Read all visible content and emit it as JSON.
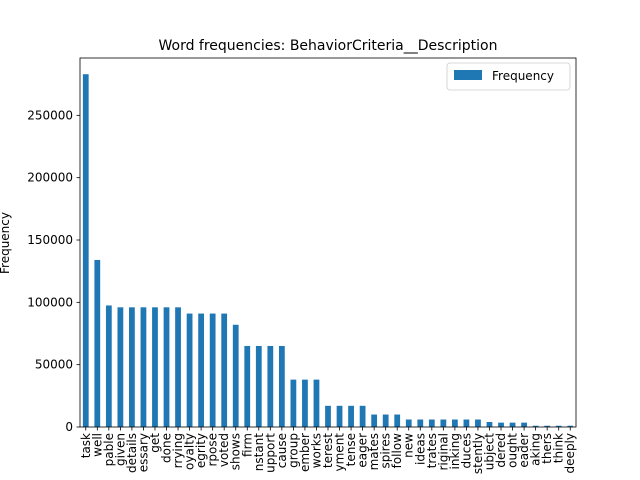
{
  "chart_data": {
    "type": "bar",
    "title": "Word frequencies: BehaviorCriteria__Description",
    "xlabel": "",
    "ylabel": "Frequency",
    "ylim": [
      0,
      296000
    ],
    "yticks": [
      0,
      50000,
      100000,
      150000,
      200000,
      250000
    ],
    "grid": false,
    "legend_position": "top-right",
    "bar_color": "#1f77b4",
    "categories": [
      "task",
      "well",
      "capable",
      "given",
      "details",
      "necessary",
      "get",
      "done",
      "carrying",
      "loyalty",
      "integrity",
      "purpose",
      "devoted",
      "shows",
      "firm",
      "constant",
      "support",
      "cause",
      "group",
      "member",
      "works",
      "interest",
      "payment",
      "intense",
      "eager",
      "mates",
      "inspires",
      "follow",
      "new",
      "ideas",
      "illustrates",
      "original",
      "thinking",
      "produces",
      "consistently",
      "subject",
      "considered",
      "thought",
      "leader",
      "making",
      "others",
      "think",
      "deeply"
    ],
    "tick_labels_visible": [
      "task",
      "well",
      "pable",
      "given",
      "details",
      "essary",
      "get",
      "done",
      "rrying",
      "oyalty",
      "egrity",
      "rpose",
      "voted",
      "shows",
      "firm",
      "nstant",
      "upport",
      "cause",
      "group",
      "ember",
      "works",
      "terest",
      "yment",
      "tense",
      "eager",
      "mates",
      "spires",
      "follow",
      "new",
      "ideas",
      "trates",
      "riginal",
      "inking",
      "duces",
      "stently",
      "ubject",
      "dered",
      "ought",
      "eader",
      "aking",
      "thers",
      "think",
      "deeply"
    ],
    "series": [
      {
        "name": "Frequency",
        "values": [
          283000,
          134000,
          97500,
          96000,
          96000,
          96000,
          96000,
          96000,
          96000,
          91000,
          91000,
          91000,
          91000,
          82000,
          65000,
          65000,
          65000,
          65000,
          38000,
          38000,
          38000,
          17000,
          17000,
          17000,
          17000,
          10000,
          10000,
          10000,
          6000,
          6000,
          6000,
          6000,
          6000,
          6000,
          6000,
          4000,
          3500,
          3500,
          3500,
          1000,
          1000,
          1000,
          1000
        ]
      }
    ]
  }
}
